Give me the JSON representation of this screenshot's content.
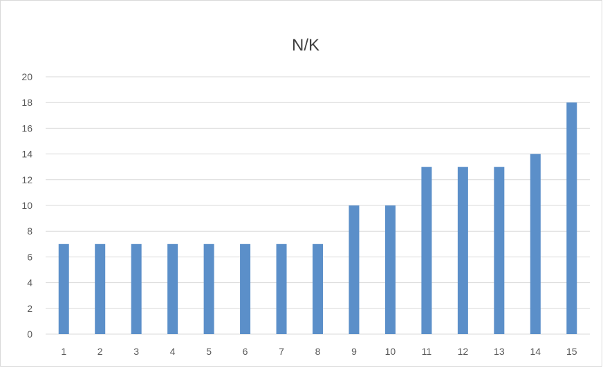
{
  "chart_data": {
    "type": "bar",
    "title": "N/K",
    "categories": [
      "1",
      "2",
      "3",
      "4",
      "5",
      "6",
      "7",
      "8",
      "9",
      "10",
      "11",
      "12",
      "13",
      "14",
      "15"
    ],
    "values": [
      7,
      7,
      7,
      7,
      7,
      7,
      7,
      7,
      10,
      10,
      13,
      13,
      13,
      14,
      18
    ],
    "ylim": [
      0,
      20
    ],
    "yticks": [
      0,
      2,
      4,
      6,
      8,
      10,
      12,
      14,
      16,
      18,
      20
    ],
    "xlabel": "",
    "ylabel": "",
    "grid": true,
    "legend": "none",
    "colors": {
      "bar": "#5b8fc9",
      "grid": "#d9d9d9",
      "text": "#595959",
      "title": "#404040"
    }
  }
}
